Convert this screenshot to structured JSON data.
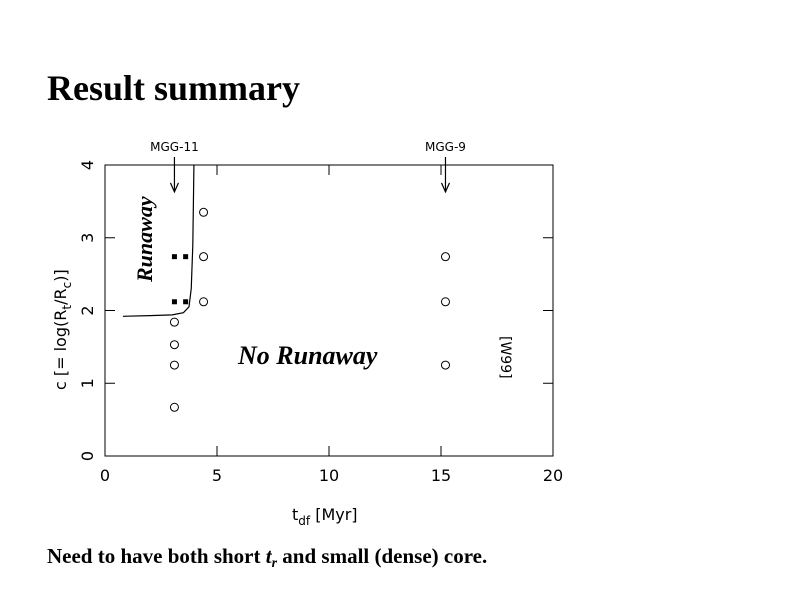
{
  "title": "Result summary",
  "footer": [
    "Need to have both short ",
    "t",
    "r",
    " and small (dense) core."
  ],
  "chart_data": {
    "type": "scatter",
    "xlabel": [
      "t",
      "df",
      " [Myr]"
    ],
    "ylabel": [
      "c [= log(R",
      "t",
      "/R",
      "c",
      ")]"
    ],
    "xlim": [
      0,
      20
    ],
    "ylim": [
      0,
      4
    ],
    "xticks": [
      0,
      5,
      10,
      15,
      20
    ],
    "yticks": [
      0,
      1,
      2,
      3,
      4
    ],
    "color": "#000000",
    "series": [
      {
        "marker": "open-circle",
        "x": [
          3.1,
          3.1,
          3.1,
          3.1,
          4.4,
          4.4,
          4.4,
          15.2,
          15.2,
          15.2
        ],
        "y": [
          1.84,
          1.53,
          1.25,
          0.67,
          3.35,
          2.74,
          2.12,
          2.74,
          2.12,
          1.25
        ]
      },
      {
        "marker": "filled-square",
        "x": [
          3.1,
          3.6,
          3.1,
          3.6
        ],
        "y": [
          2.74,
          2.74,
          2.12,
          2.12
        ]
      },
      {
        "marker": "line",
        "x": [
          0.8,
          2,
          3,
          3.5,
          3.75,
          3.85,
          3.92,
          3.97
        ],
        "y": [
          1.92,
          1.93,
          1.94,
          1.97,
          2.05,
          2.3,
          2.9,
          4
        ]
      }
    ],
    "arrows": [
      {
        "label": "MGG-11",
        "x": 3.1,
        "y": 3.63
      },
      {
        "label": "MGG-9",
        "x": 15.2,
        "y": 3.63
      }
    ],
    "annotations": [
      "Runaway",
      "No Runaway",
      "[W99]"
    ]
  }
}
